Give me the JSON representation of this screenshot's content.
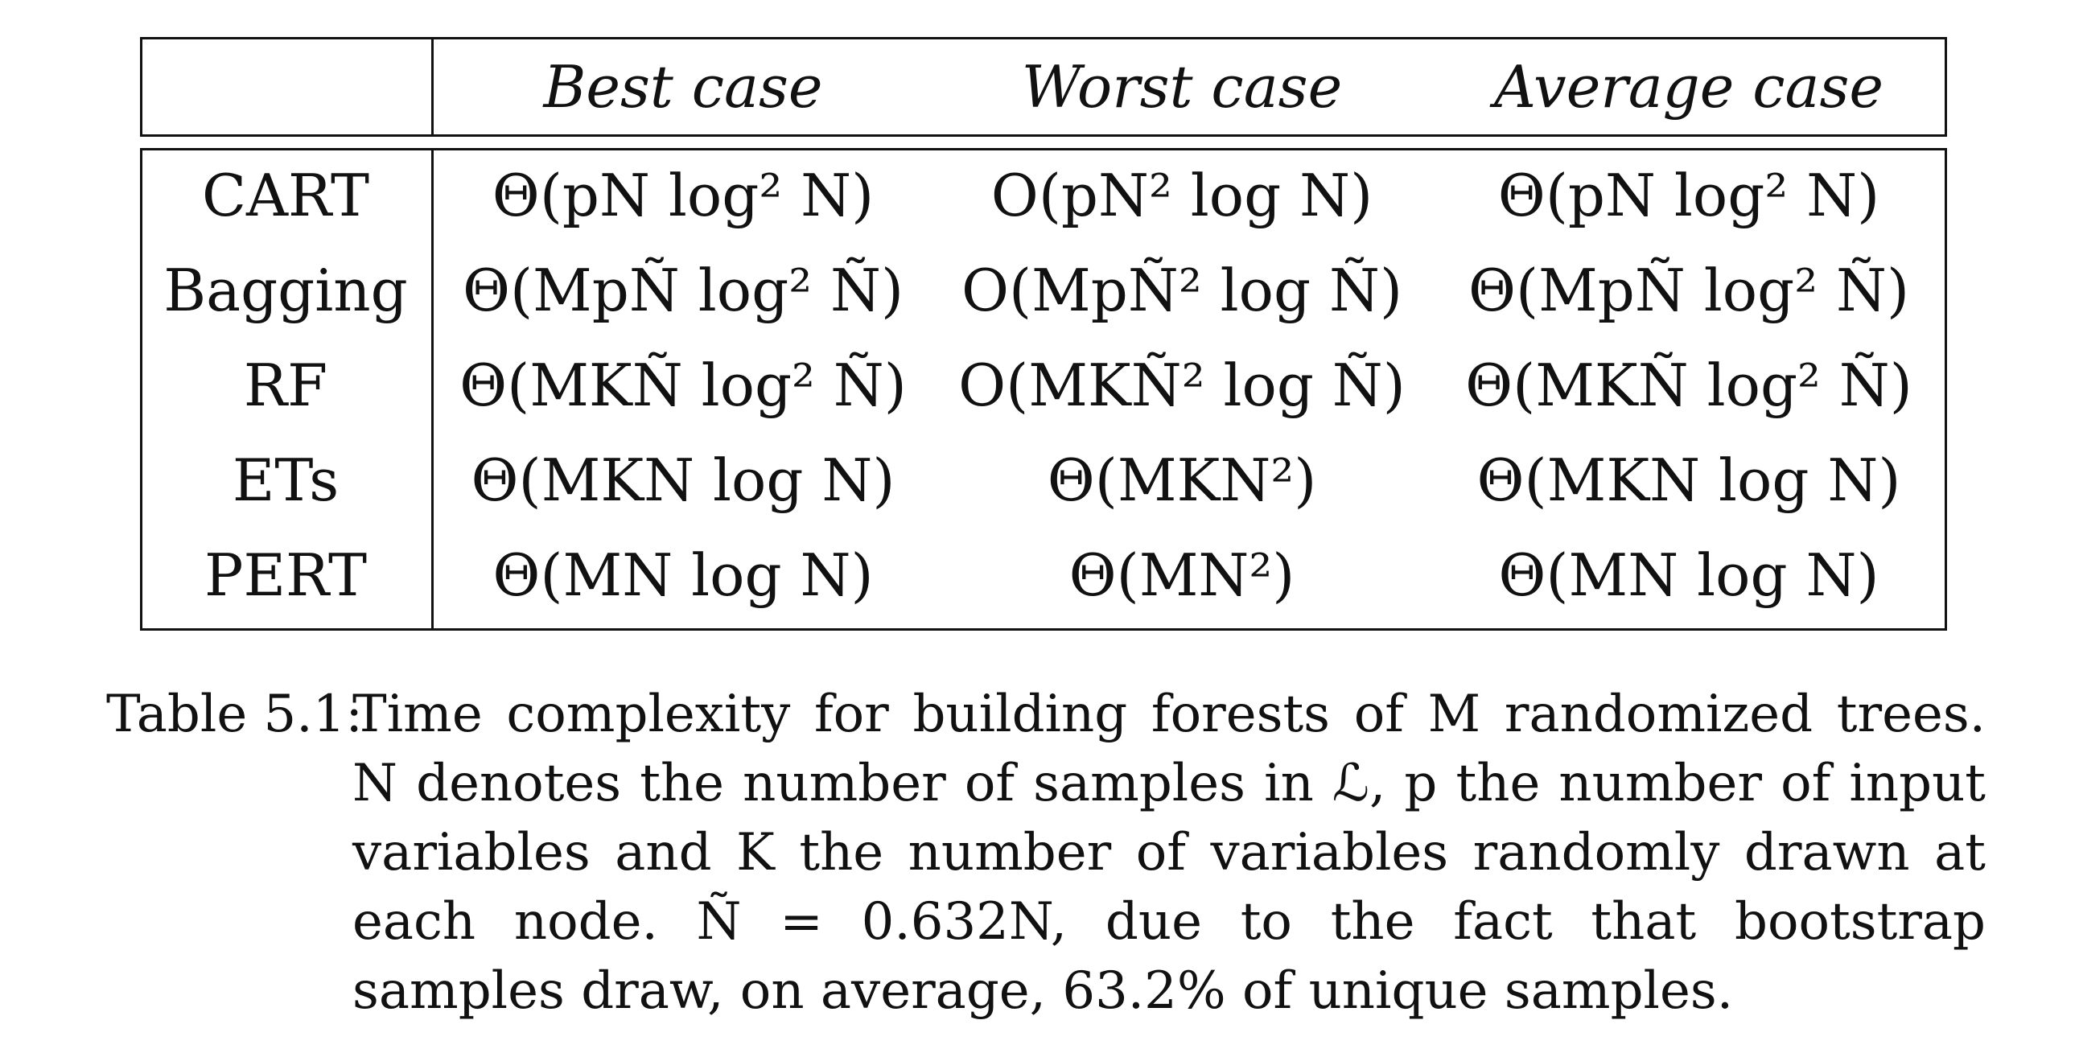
{
  "table": {
    "header": [
      "",
      "Best case",
      "Worst case",
      "Average case"
    ],
    "rows": [
      {
        "method": "CART",
        "best": "Θ(pN log² N)",
        "worst": "O(pN² log N)",
        "average": "Θ(pN log² N)"
      },
      {
        "method": "Bagging",
        "best": "Θ(MpÑ log² Ñ)",
        "worst": "O(MpÑ² log Ñ)",
        "average": "Θ(MpÑ log² Ñ)"
      },
      {
        "method": "RF",
        "best": "Θ(MKÑ log² Ñ)",
        "worst": "O(MKÑ² log Ñ)",
        "average": "Θ(MKÑ log² Ñ)"
      },
      {
        "method": "ETs",
        "best": "Θ(MKN log N)",
        "worst": "Θ(MKN²)",
        "average": "Θ(MKN log N)"
      },
      {
        "method": "PERT",
        "best": "Θ(MN log N)",
        "worst": "Θ(MN²)",
        "average": "Θ(MN log N)"
      }
    ]
  },
  "caption": {
    "label": "Table 5.1:",
    "text": "Time complexity for building forests of M randomized trees. N denotes the number of samples in ℒ, p the number of input variables and K the number of variables randomly drawn at each node. Ñ = 0.632N, due to the fact that bootstrap samples draw, on average, 63.2% of unique samples."
  }
}
